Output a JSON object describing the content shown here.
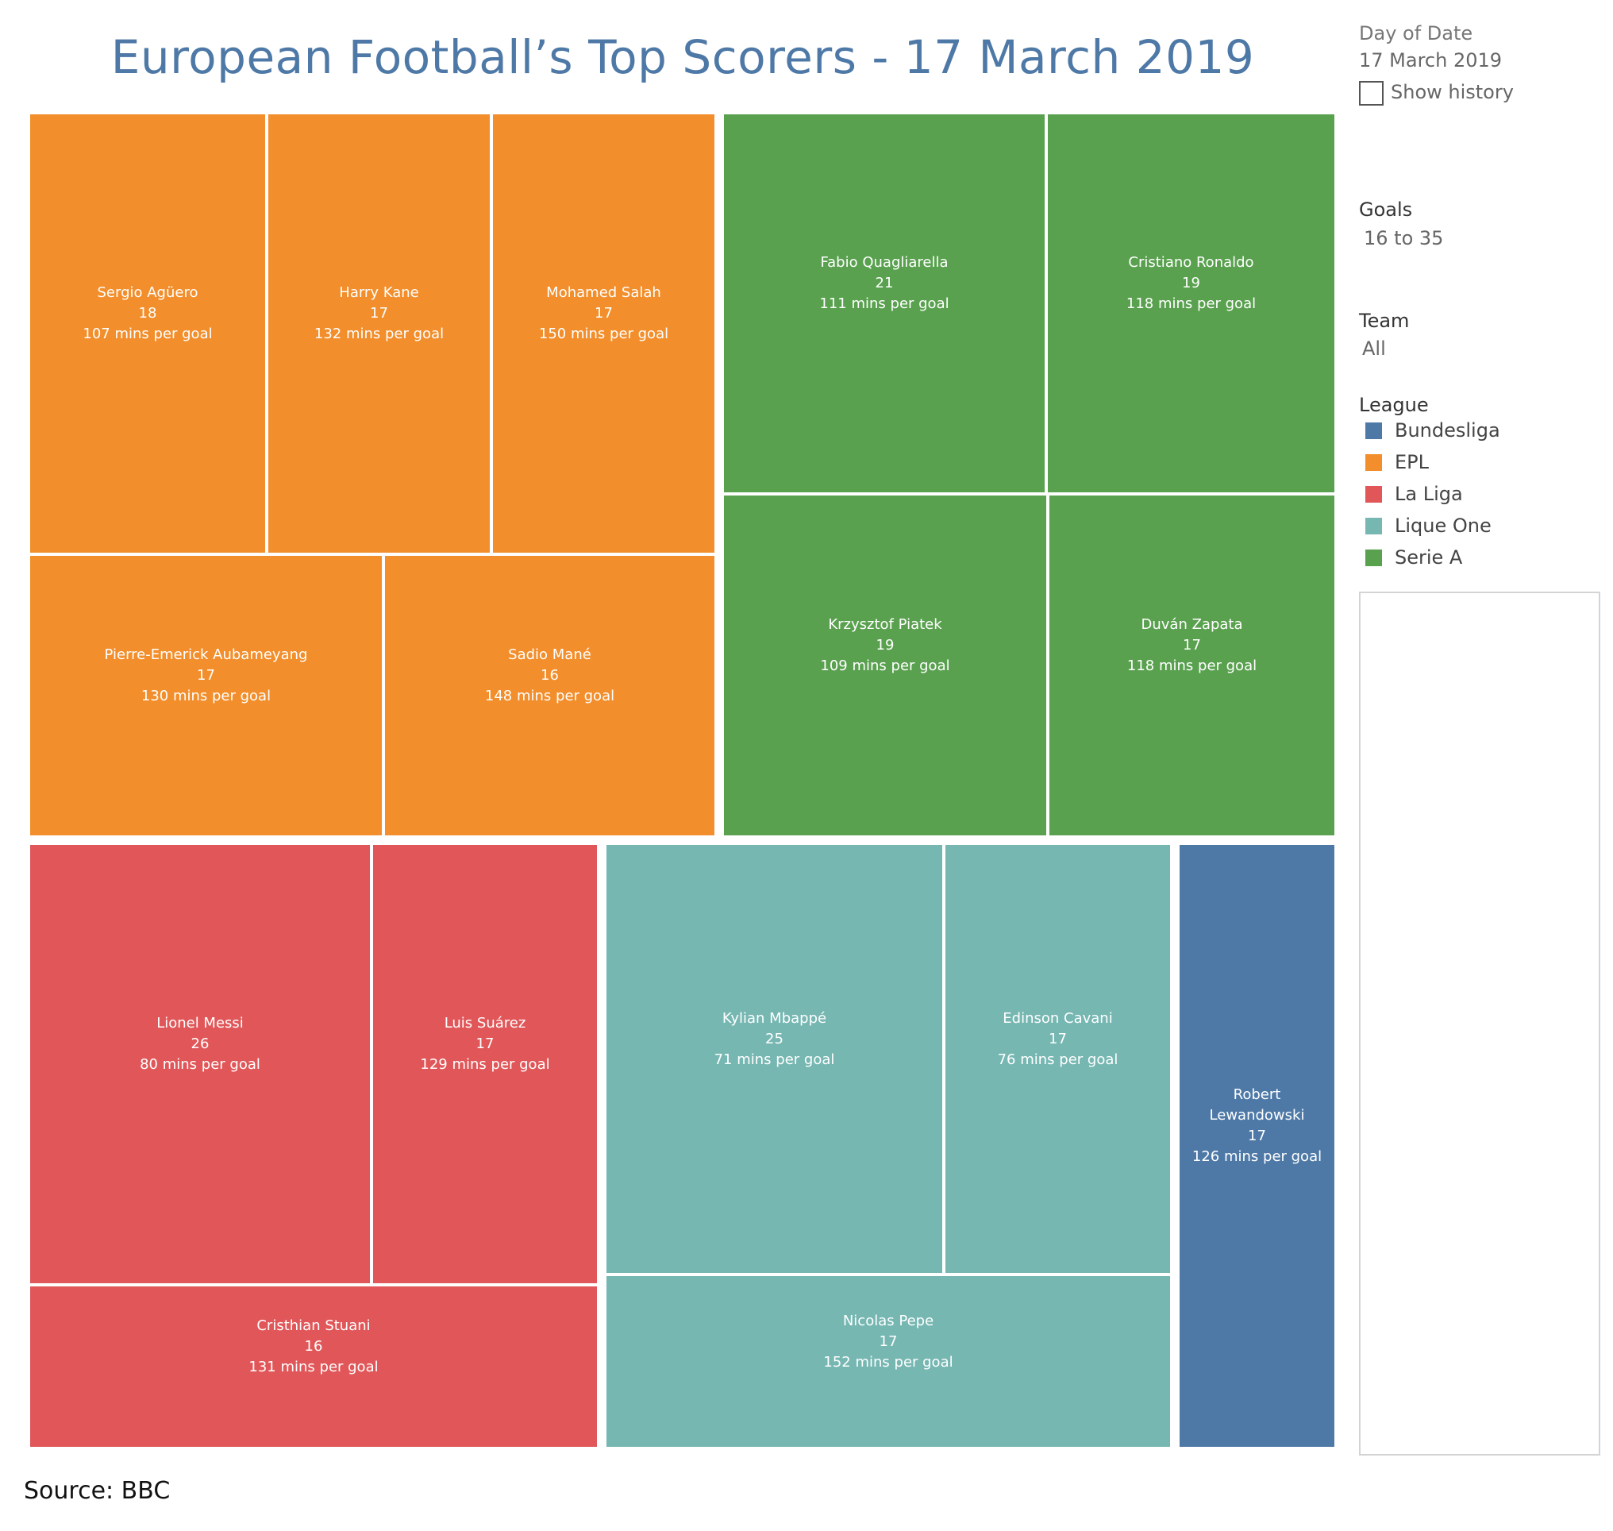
{
  "page": {
    "title": "European Football’s Top Scorers - 17 March 2019",
    "source": "Source: BBC"
  },
  "filters": {
    "date_heading": "Day of Date",
    "date_value": "17 March 2019",
    "show_history_label": "Show history",
    "show_history_checked": false,
    "goals_heading": "Goals",
    "goals_value": "16 to 35",
    "team_heading": "Team",
    "team_value": "All"
  },
  "legend": {
    "heading": "League",
    "items": [
      {
        "label": "Bundesliga",
        "color": "#4e79a7"
      },
      {
        "label": "EPL",
        "color": "#f28e2b"
      },
      {
        "label": "La Liga",
        "color": "#e15759"
      },
      {
        "label": "Lique One",
        "color": "#76b7b2"
      },
      {
        "label": "Serie A",
        "color": "#59a14f"
      }
    ]
  },
  "chart_data": {
    "type": "treemap",
    "title": "European Football’s Top Scorers - 17 March 2019",
    "size_measure": "Goals",
    "color_dimension": "League",
    "groups": [
      {
        "league": "EPL",
        "color": "#f28e2b",
        "players": [
          {
            "name": "Sergio Agüero",
            "goals": 18,
            "mins_per_goal": "107 mins per goal"
          },
          {
            "name": "Harry Kane",
            "goals": 17,
            "mins_per_goal": "132 mins per goal"
          },
          {
            "name": "Mohamed Salah",
            "goals": 17,
            "mins_per_goal": "150 mins per goal"
          },
          {
            "name": "Pierre-Emerick Aubameyang",
            "goals": 17,
            "mins_per_goal": "130 mins per goal"
          },
          {
            "name": "Sadio Mané",
            "goals": 16,
            "mins_per_goal": "148 mins per goal"
          }
        ]
      },
      {
        "league": "Serie A",
        "color": "#59a14f",
        "players": [
          {
            "name": "Fabio Quagliarella",
            "goals": 21,
            "mins_per_goal": "111 mins per goal"
          },
          {
            "name": "Cristiano Ronaldo",
            "goals": 19,
            "mins_per_goal": "118 mins per goal"
          },
          {
            "name": "Krzysztof Piatek",
            "goals": 19,
            "mins_per_goal": "109 mins per goal"
          },
          {
            "name": "Duván Zapata",
            "goals": 17,
            "mins_per_goal": "118 mins per goal"
          }
        ]
      },
      {
        "league": "La Liga",
        "color": "#e15759",
        "players": [
          {
            "name": "Lionel Messi",
            "goals": 26,
            "mins_per_goal": "80 mins per goal"
          },
          {
            "name": "Luis Suárez",
            "goals": 17,
            "mins_per_goal": "129 mins per goal"
          },
          {
            "name": "Cristhian Stuani",
            "goals": 16,
            "mins_per_goal": "131 mins per goal"
          }
        ]
      },
      {
        "league": "Lique One",
        "color": "#76b7b2",
        "players": [
          {
            "name": "Kylian Mbappé",
            "goals": 25,
            "mins_per_goal": "71 mins per goal"
          },
          {
            "name": "Edinson Cavani",
            "goals": 17,
            "mins_per_goal": "76 mins per goal"
          },
          {
            "name": "Nicolas Pepe",
            "goals": 17,
            "mins_per_goal": "152 mins per goal"
          }
        ]
      },
      {
        "league": "Bundesliga",
        "color": "#4e79a7",
        "players": [
          {
            "name": "Robert Lewandowski",
            "goals": 17,
            "mins_per_goal": "126 mins per goal"
          }
        ]
      }
    ]
  }
}
